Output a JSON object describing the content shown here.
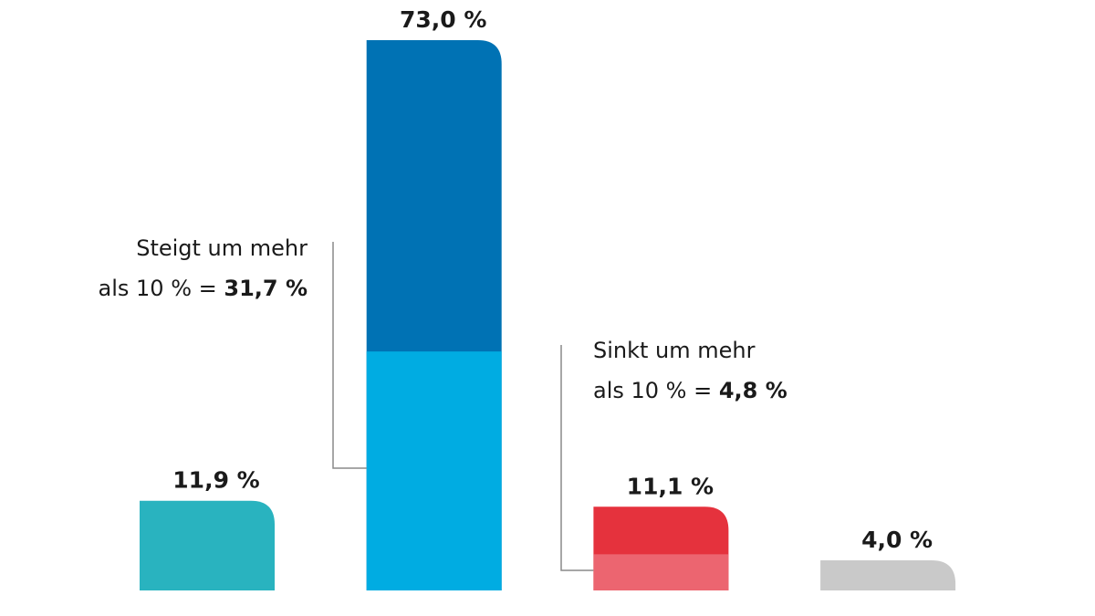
{
  "chart_data": {
    "type": "bar",
    "values": [
      11.9,
      73.0,
      11.1,
      4.0
    ],
    "value_labels": [
      "11,9 %",
      "73,0 %",
      "11,1 %",
      "4,0 %"
    ],
    "colors": [
      "#29b3bf",
      "#0072b4",
      "#e5323d",
      "#c9c9c9"
    ],
    "segments": [
      null,
      {
        "value": 31.7,
        "color": "#00ace2",
        "lines": [
          "Steigt um mehr",
          "als 10 % = "
        ],
        "value_label": "31,7 %"
      },
      {
        "value": 4.8,
        "color": "#ec6570",
        "lines": [
          "Sinkt um mehr",
          "als 10 % = "
        ],
        "value_label": "4,8 %"
      },
      null
    ]
  }
}
